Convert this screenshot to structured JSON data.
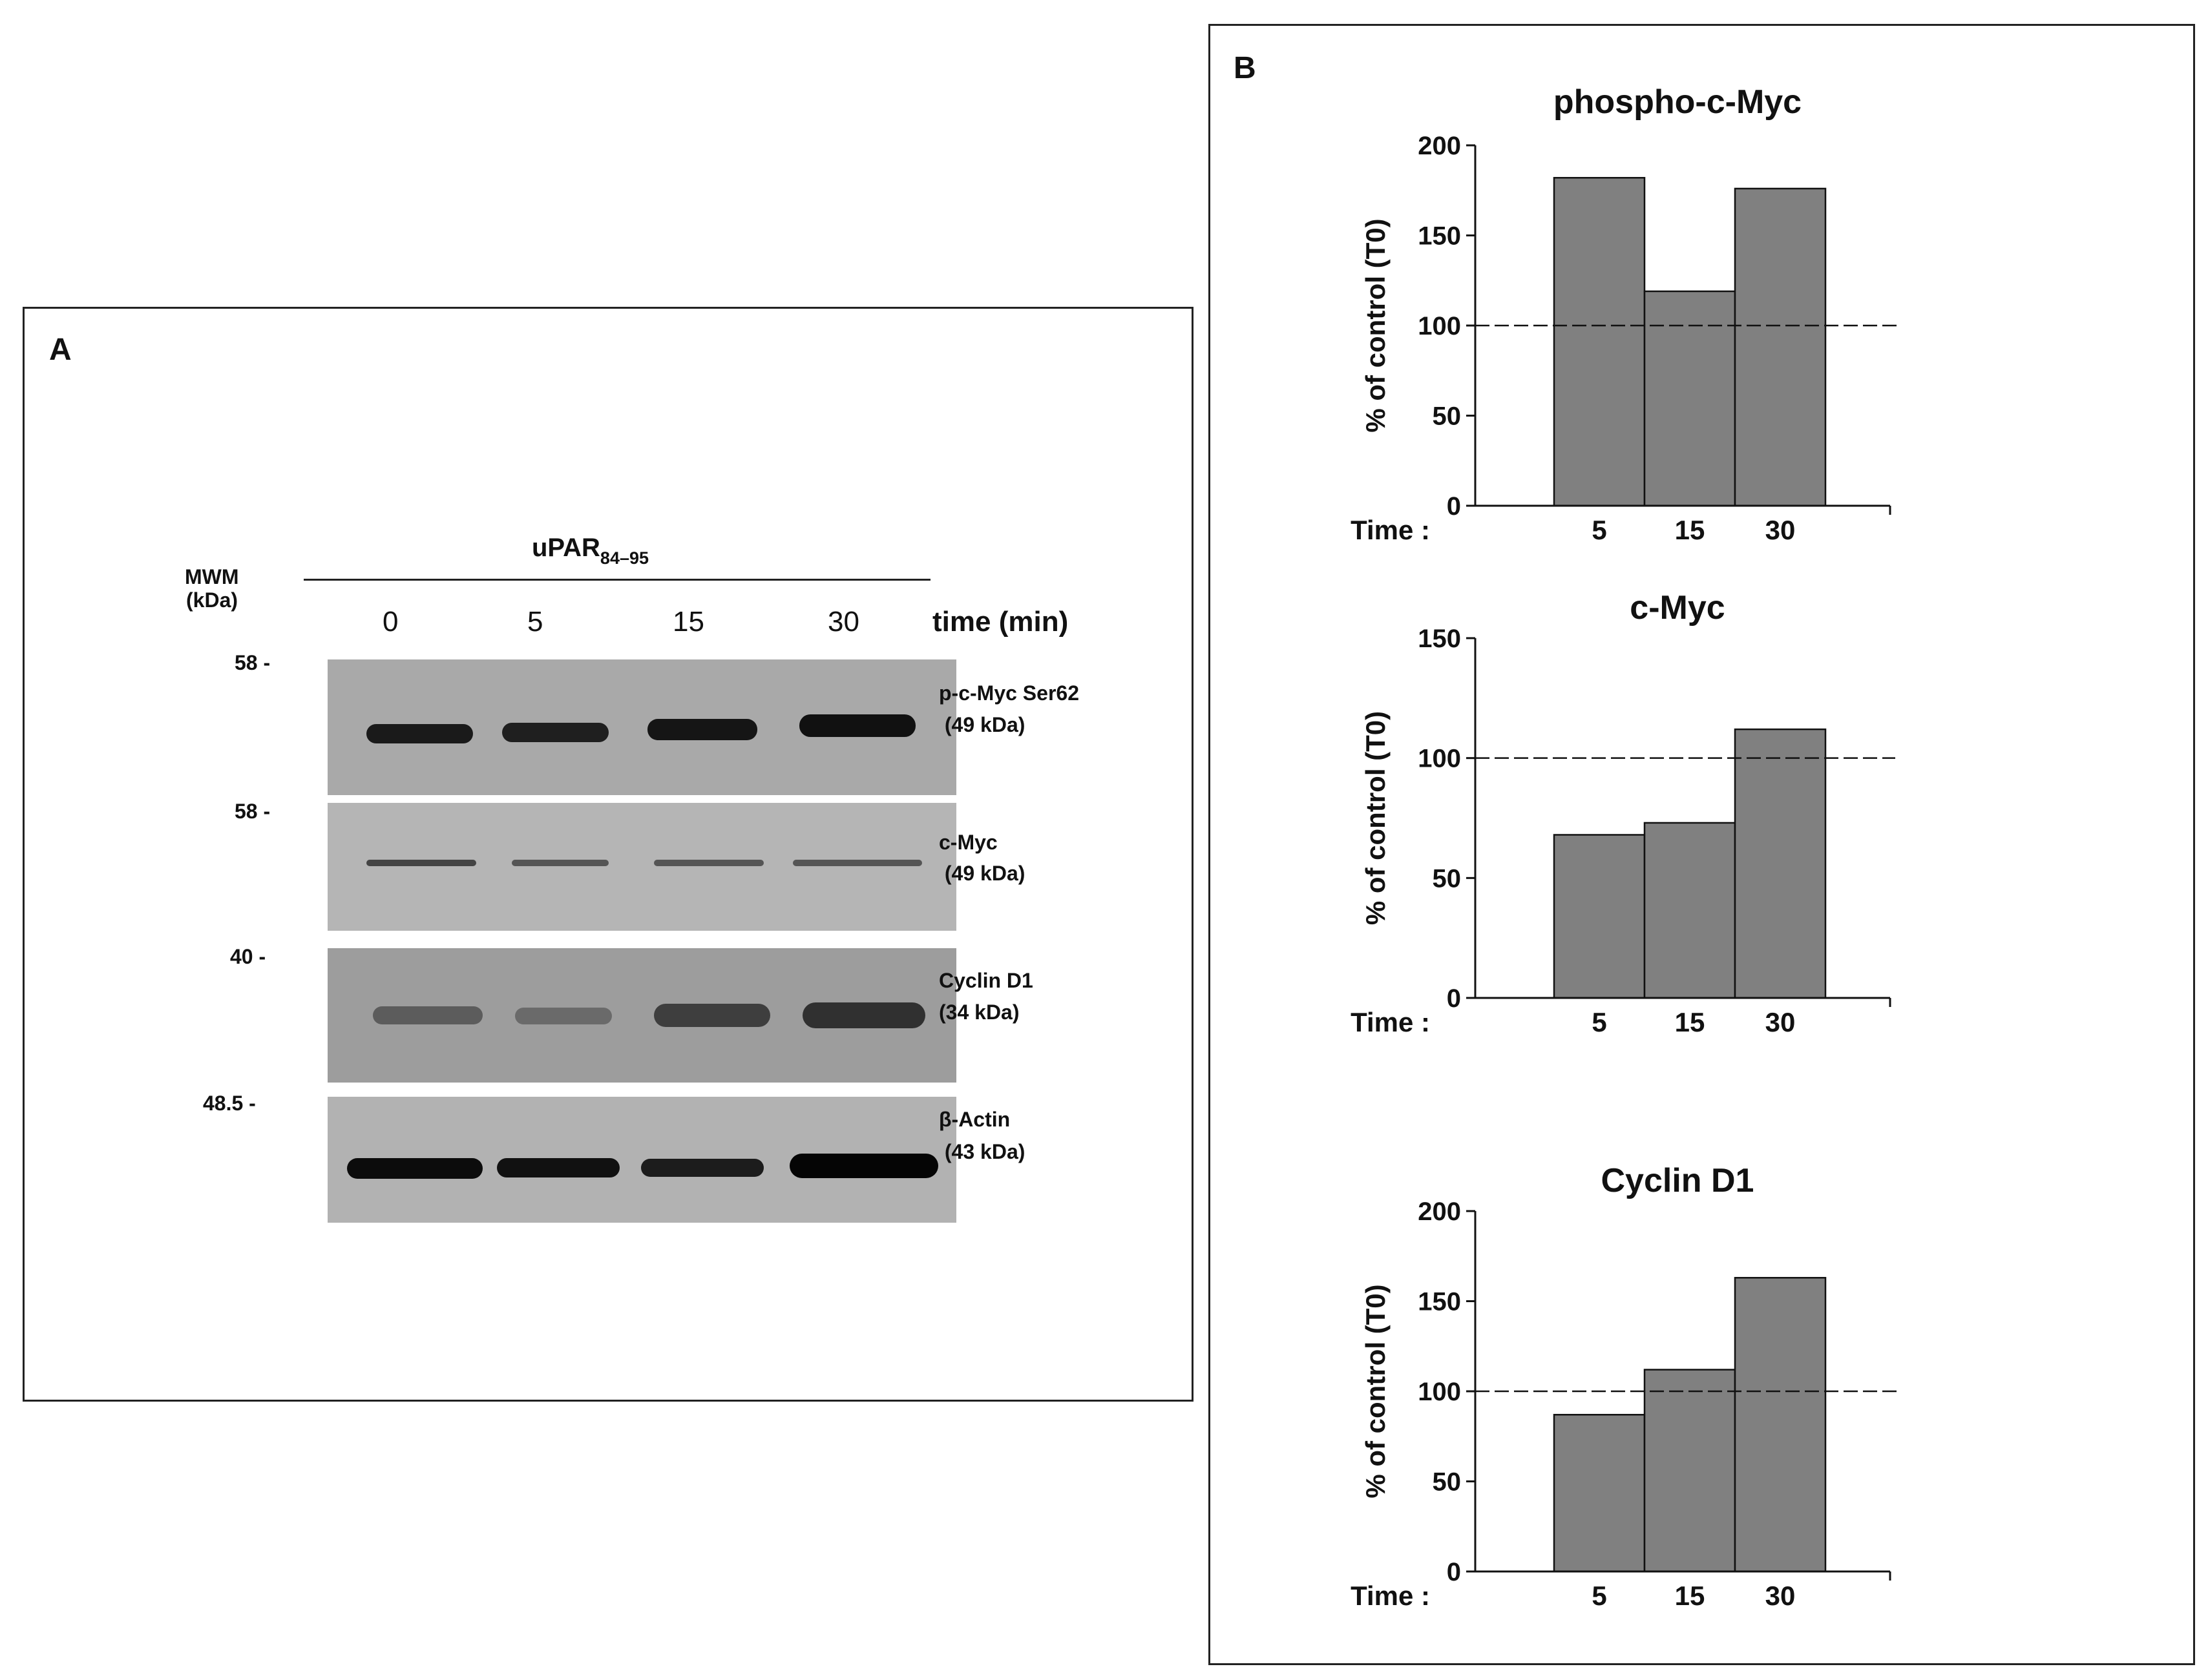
{
  "panel_a": {
    "letter": "A",
    "mwm_label": "MWM",
    "mwm_unit": "(kDa)",
    "treatment_main": "uPAR",
    "treatment_sub": "84–95",
    "lanes": [
      "0",
      "5",
      "15",
      "30"
    ],
    "time_label": "time (min)",
    "markers": [
      "58 -",
      "58 -",
      "40 -",
      "48.5 -"
    ],
    "blots": [
      {
        "name_line1": "p-c-Myc  Ser62",
        "name_line2": " (49 kDa)",
        "intensities": [
          0.8,
          0.8,
          0.88,
          0.92
        ]
      },
      {
        "name_line1": "c-Myc",
        "name_line2": " (49 kDa)",
        "intensities": [
          0.55,
          0.45,
          0.45,
          0.45
        ]
      },
      {
        "name_line1": "Cyclin D1",
        "name_line2": "(34 kDa)",
        "intensities": [
          0.45,
          0.4,
          0.62,
          0.7
        ]
      },
      {
        "name_line1": "β-Actin",
        "name_line2": " (43 kDa)",
        "intensities": [
          0.95,
          0.93,
          0.85,
          1.0
        ]
      }
    ]
  },
  "panel_b": {
    "letter": "B",
    "x_label": "Time :",
    "bar_color": "#808080",
    "reference_line": 100
  },
  "chart_data": [
    {
      "type": "bar",
      "title": "phospho-c-Myc",
      "ylabel": "% of control (T0)",
      "categories": [
        "5",
        "15",
        "30"
      ],
      "values": [
        182,
        119,
        176
      ],
      "ylim": [
        0,
        200
      ],
      "yticks": [
        "0",
        "50",
        "100",
        "150",
        "200"
      ],
      "reference_line": 100
    },
    {
      "type": "bar",
      "title": "c-Myc",
      "ylabel": "% of control (T0)",
      "categories": [
        "5",
        "15",
        "30"
      ],
      "values": [
        68,
        73,
        112
      ],
      "ylim": [
        0,
        150
      ],
      "yticks": [
        "0",
        "50",
        "100",
        "150"
      ],
      "reference_line": 100
    },
    {
      "type": "bar",
      "title": "Cyclin D1",
      "ylabel": "% of control (T0)",
      "categories": [
        "5",
        "15",
        "30"
      ],
      "values": [
        87,
        112,
        163
      ],
      "ylim": [
        0,
        200
      ],
      "yticks": [
        "0",
        "50",
        "100",
        "150",
        "200"
      ],
      "reference_line": 100
    }
  ]
}
